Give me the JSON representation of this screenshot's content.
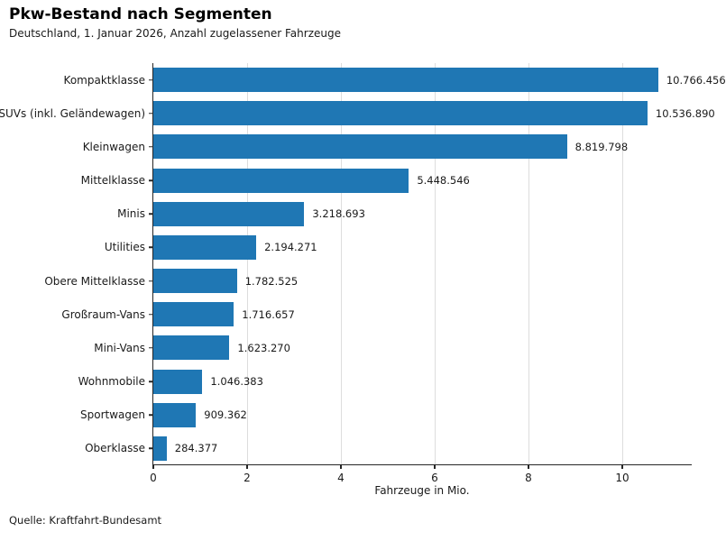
{
  "header": {
    "title": "Pkw-Bestand nach Segmenten",
    "subtitle": "Deutschland, 1. Januar 2026, Anzahl zugelassener Fahrzeuge"
  },
  "footer": {
    "source": "Quelle: Kraftfahrt-Bundesamt"
  },
  "chart_data": {
    "type": "bar",
    "orientation": "horizontal",
    "title": "Pkw-Bestand nach Segmenten",
    "subtitle": "Deutschland, 1. Januar 2026, Anzahl zugelassener Fahrzeuge",
    "categories": [
      "Kompaktklasse",
      "SUVs (inkl. Geländewagen)",
      "Kleinwagen",
      "Mittelklasse",
      "Minis",
      "Utilities",
      "Obere Mittelklasse",
      "Großraum-Vans",
      "Mini-Vans",
      "Wohnmobile",
      "Sportwagen",
      "Oberklasse"
    ],
    "values": [
      10766456,
      10536890,
      8819798,
      5448546,
      3218693,
      2194271,
      1782525,
      1716657,
      1623270,
      1046383,
      909362,
      284377
    ],
    "value_labels": [
      "10.766.456",
      "10.536.890",
      "8.819.798",
      "5.448.546",
      "3.218.693",
      "2.194.271",
      "1.782.525",
      "1.716.657",
      "1.623.270",
      "1.046.383",
      "909.362",
      "284.377"
    ],
    "xlabel": "Fahrzeuge in Mio.",
    "ylabel": "",
    "xticks": [
      0,
      2,
      4,
      6,
      8,
      10
    ],
    "xlim": [
      0,
      11.5
    ],
    "unit_divisor": 1000000,
    "grid": "vertical",
    "legend": "none",
    "bar_color": "#1f77b4",
    "grid_color": "#dddddd",
    "source": "Quelle: Kraftfahrt-Bundesamt"
  }
}
